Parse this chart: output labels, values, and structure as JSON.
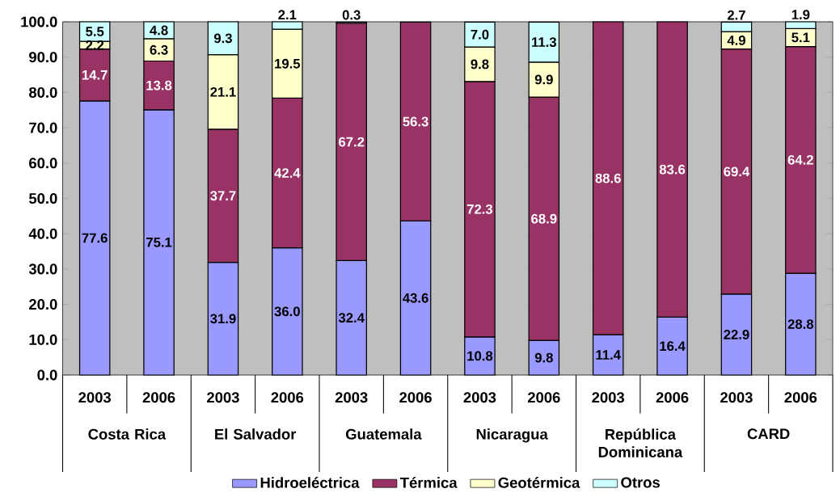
{
  "chart_data": {
    "type": "bar",
    "stacked": true,
    "categories": [
      "2003",
      "2006",
      "2003",
      "2006",
      "2003",
      "2006",
      "2003",
      "2006",
      "2003",
      "2006",
      "2003",
      "2006"
    ],
    "annotations": [
      "Costa Rica",
      "El Salvador",
      "Guatemala",
      "Nicaragua",
      "República Dominicana",
      "CARD"
    ],
    "series": [
      {
        "name": "Hidroeléctrica",
        "color": "#9999ff",
        "values": [
          77.6,
          75.1,
          31.9,
          36.0,
          32.4,
          43.6,
          10.8,
          9.8,
          11.4,
          16.4,
          22.9,
          28.8
        ],
        "value_labels": [
          "77.6",
          "75.1",
          "31.9",
          "36.0",
          "32.4",
          "43.6",
          "10.8",
          "9.8",
          "11.4",
          "16.4",
          "22.9",
          "28.8"
        ]
      },
      {
        "name": "Térmica",
        "color": "#993366",
        "values": [
          14.7,
          13.8,
          37.7,
          42.4,
          67.2,
          56.3,
          72.3,
          68.9,
          88.6,
          83.6,
          69.4,
          64.2
        ],
        "value_labels": [
          "14.7",
          "13.8",
          "37.7",
          "42.4",
          "67.2",
          "56.3",
          "72.3",
          "68.9",
          "88.6",
          "83.6",
          "69.4",
          "64.2"
        ]
      },
      {
        "name": "Geotérmica",
        "color": "#ffffcc",
        "values": [
          2.2,
          6.3,
          21.1,
          19.5,
          null,
          null,
          9.8,
          9.9,
          null,
          null,
          4.9,
          5.1
        ],
        "value_labels": [
          "2.2",
          "6.3",
          "21.1",
          "19.5",
          null,
          null,
          "9.8",
          "9.9",
          null,
          null,
          "4.9",
          "5.1"
        ]
      },
      {
        "name": "Otros",
        "color": "#ccffff",
        "values": [
          5.5,
          4.8,
          9.3,
          2.1,
          0.3,
          null,
          7.0,
          11.3,
          null,
          null,
          2.7,
          1.9
        ],
        "value_labels": [
          "5.5",
          "4.8",
          "9.3",
          "2.1",
          "0.3",
          null,
          "7.0",
          "11.3",
          null,
          null,
          "2.7",
          "1.9"
        ]
      }
    ],
    "ylim": [
      0,
      100
    ],
    "yticks": [
      {
        "value": 0,
        "label": "0.0"
      },
      {
        "value": 10,
        "label": "10.0"
      },
      {
        "value": 20,
        "label": "20.0"
      },
      {
        "value": 30,
        "label": "30.0"
      },
      {
        "value": 40,
        "label": "40.0"
      },
      {
        "value": 50,
        "label": "50.0"
      },
      {
        "value": 60,
        "label": "60.0"
      },
      {
        "value": 70,
        "label": "70.0"
      },
      {
        "value": 80,
        "label": "80.0"
      },
      {
        "value": 90,
        "label": "90.0"
      },
      {
        "value": 100,
        "label": "100.0"
      }
    ],
    "grid": "y",
    "legend": "bottom"
  }
}
